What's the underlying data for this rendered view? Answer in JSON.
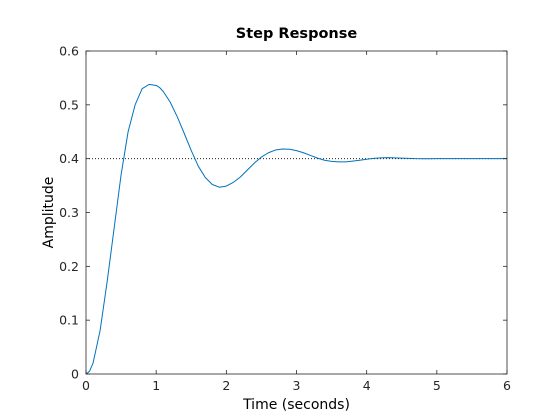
{
  "chart_data": {
    "type": "line",
    "title": "Step Response",
    "xlabel": "Time (seconds)",
    "ylabel": "Amplitude",
    "xlim": [
      0,
      6
    ],
    "ylim": [
      0,
      0.6
    ],
    "xticks": [
      0,
      1,
      2,
      3,
      4,
      5,
      6
    ],
    "yticks": [
      0,
      0.1,
      0.2,
      0.3,
      0.4,
      0.5,
      0.6
    ],
    "xtick_labels": [
      "0",
      "1",
      "2",
      "3",
      "4",
      "5",
      "6"
    ],
    "ytick_labels": [
      "0",
      "0.1",
      "0.2",
      "0.3",
      "0.4",
      "0.5",
      "0.6"
    ],
    "grid": false,
    "series": [
      {
        "color": "#0072bd",
        "x": [
          0,
          0.05,
          0.1,
          0.2,
          0.3,
          0.4,
          0.5,
          0.6,
          0.7,
          0.8,
          0.9,
          1.0,
          1.05,
          1.1,
          1.2,
          1.3,
          1.4,
          1.5,
          1.6,
          1.7,
          1.8,
          1.9,
          2.0,
          2.1,
          2.2,
          2.3,
          2.4,
          2.5,
          2.6,
          2.7,
          2.8,
          2.9,
          3.0,
          3.1,
          3.2,
          3.3,
          3.4,
          3.5,
          3.6,
          3.7,
          3.8,
          3.9,
          4.0,
          4.1,
          4.2,
          4.3,
          4.4,
          4.5,
          4.6,
          4.7,
          4.8,
          4.9,
          5.0,
          5.1,
          5.2,
          5.3,
          5.4,
          5.5,
          5.6,
          5.7,
          5.8,
          5.9,
          6.0
        ],
        "y": [
          0,
          0.005,
          0.02,
          0.08,
          0.17,
          0.27,
          0.37,
          0.45,
          0.5,
          0.53,
          0.538,
          0.536,
          0.532,
          0.525,
          0.505,
          0.478,
          0.447,
          0.415,
          0.386,
          0.365,
          0.352,
          0.347,
          0.349,
          0.356,
          0.366,
          0.379,
          0.392,
          0.403,
          0.411,
          0.416,
          0.418,
          0.4175,
          0.415,
          0.411,
          0.406,
          0.401,
          0.397,
          0.395,
          0.394,
          0.394,
          0.3955,
          0.397,
          0.399,
          0.4005,
          0.4015,
          0.402,
          0.4015,
          0.401,
          0.4005,
          0.4,
          0.3998,
          0.3998,
          0.4,
          0.4,
          0.4,
          0.4,
          0.4,
          0.4,
          0.4,
          0.4,
          0.4,
          0.4,
          0.4
        ]
      }
    ],
    "reference_line": {
      "y": 0.4,
      "style": "dotted",
      "color": "#000000"
    }
  }
}
